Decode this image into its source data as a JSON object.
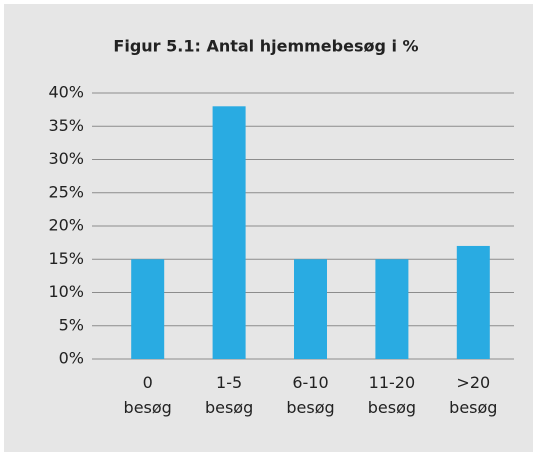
{
  "chart_data": {
    "type": "bar",
    "title": "Figur 5.1: Antal hjemmebesøg i %",
    "categories": [
      "0 besøg",
      "1-5 besøg",
      "6-10 besøg",
      "11-20 besøg",
      ">20 besøg"
    ],
    "values": [
      15,
      38,
      15,
      15,
      17
    ],
    "color": "#29abe2",
    "ylim": [
      0,
      40
    ],
    "yticks": [
      {
        "value": 0,
        "label": "0%"
      },
      {
        "value": 5,
        "label": "5%"
      },
      {
        "value": 10,
        "label": "10%"
      },
      {
        "value": 15,
        "label": "15%"
      },
      {
        "value": 20,
        "label": "20%"
      },
      {
        "value": 25,
        "label": "25%"
      },
      {
        "value": 30,
        "label": "30%"
      },
      {
        "value": 35,
        "label": "35%"
      },
      {
        "value": 40,
        "label": "40%"
      }
    ],
    "grid": true
  }
}
